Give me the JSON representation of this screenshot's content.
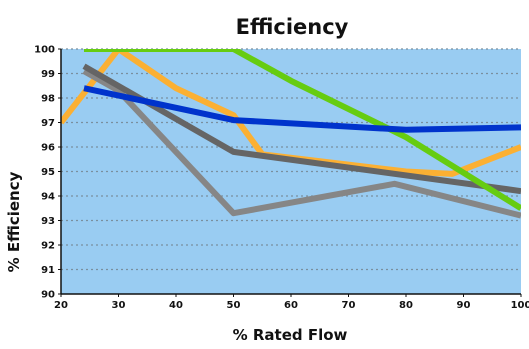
{
  "chart_data": {
    "type": "line",
    "title": "Efficiency",
    "xlabel": "% Rated Flow",
    "ylabel": "% Efficiency",
    "xlim": [
      20,
      100
    ],
    "ylim": [
      90,
      100
    ],
    "x_ticks": [
      "20",
      "30",
      "40",
      "50",
      "60",
      "70",
      "80",
      "90",
      "100"
    ],
    "y_ticks": [
      "90",
      "91",
      "92",
      "93",
      "94",
      "95",
      "96",
      "97",
      "98",
      "99",
      "100"
    ],
    "grid": true,
    "legend": "none",
    "colors": {
      "plot_background": "#99ccf2",
      "gridline": "#7a8f9e",
      "axis": "#111111"
    },
    "series": [
      {
        "color": "#fbb033",
        "points": [
          [
            20,
            97.0
          ],
          [
            30,
            100.0
          ],
          [
            40,
            98.4
          ],
          [
            50,
            97.3
          ],
          [
            55,
            95.7
          ],
          [
            80,
            95.0
          ],
          [
            88,
            94.9
          ],
          [
            100,
            96.0
          ]
        ]
      },
      {
        "color": "#868686",
        "points": [
          [
            24,
            99.1
          ],
          [
            30,
            98.3
          ],
          [
            50,
            93.3
          ],
          [
            78,
            94.5
          ],
          [
            100,
            93.2
          ]
        ]
      },
      {
        "color": "#656565",
        "points": [
          [
            24,
            99.3
          ],
          [
            50,
            95.8
          ],
          [
            100,
            94.2
          ]
        ]
      },
      {
        "color": "#66cc11",
        "points": [
          [
            24,
            100.0
          ],
          [
            50,
            100.0
          ],
          [
            60,
            98.7
          ],
          [
            80,
            96.4
          ],
          [
            100,
            93.5
          ]
        ]
      },
      {
        "color": "#0033cc",
        "points": [
          [
            24,
            98.4
          ],
          [
            50,
            97.1
          ],
          [
            80,
            96.7
          ],
          [
            100,
            96.8
          ]
        ]
      }
    ]
  }
}
